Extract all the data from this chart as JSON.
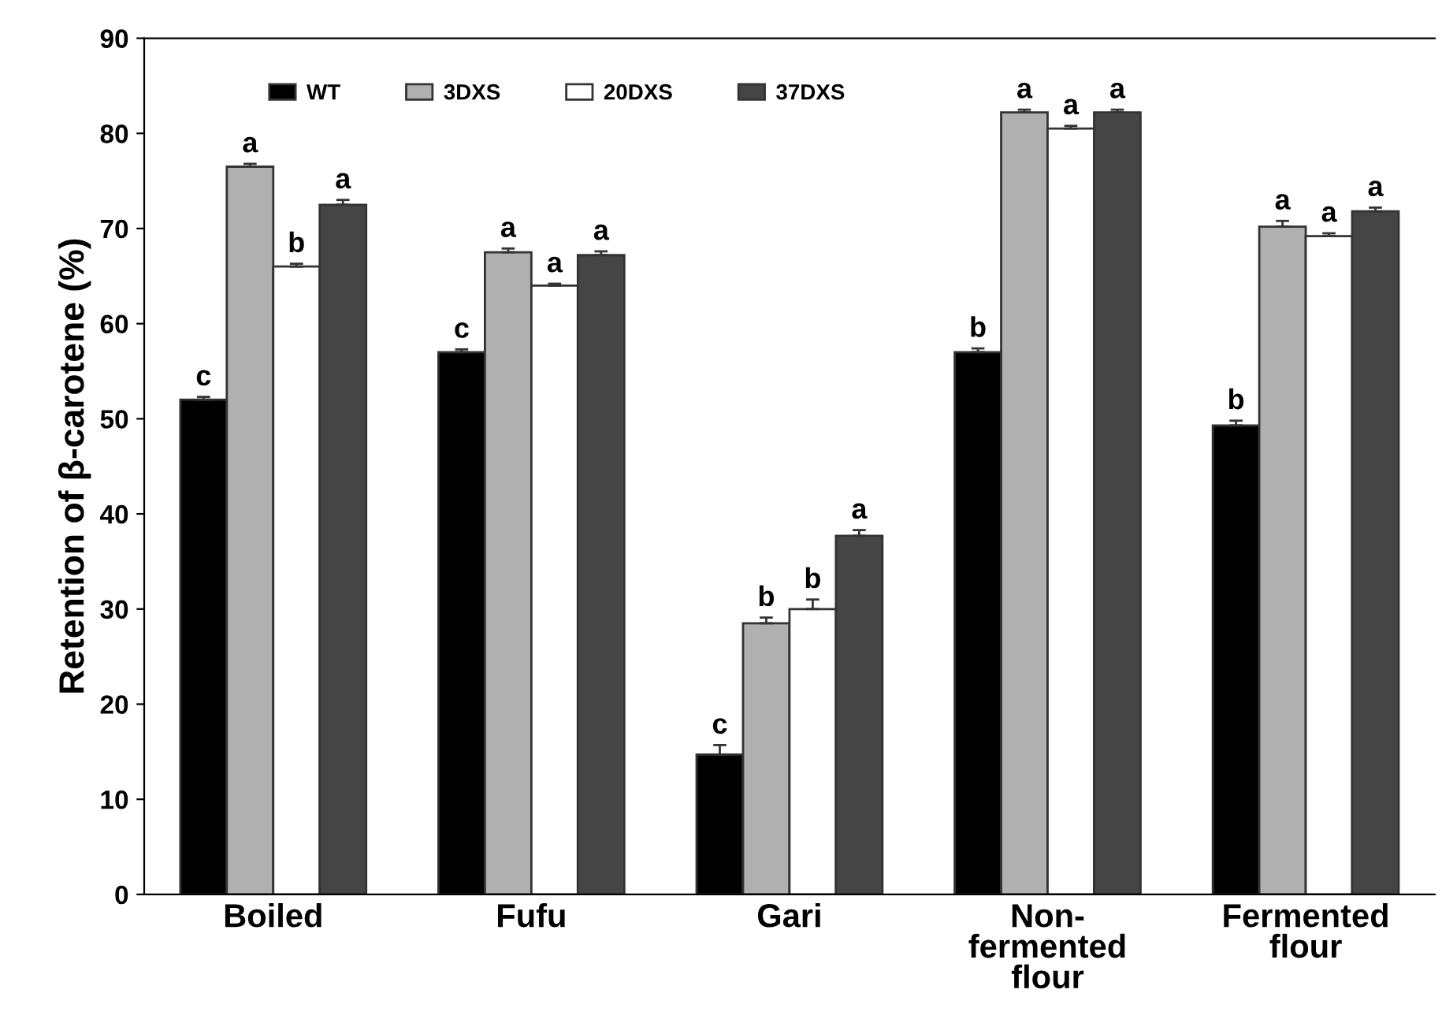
{
  "chart_data": {
    "type": "bar",
    "ylabel": "Retention of β-carotene (%)",
    "categories": [
      "Boiled",
      "Fufu",
      "Gari",
      "Non-\nfermented\nflour",
      "Fermented\nflour"
    ],
    "series": [
      {
        "name": "WT",
        "color": "#000000",
        "values": [
          52,
          57,
          14.7,
          57,
          49.3
        ],
        "errors": [
          0.3,
          0.3,
          1.0,
          0.4,
          0.5
        ],
        "value_labels": [
          "c",
          "c",
          "c",
          "b",
          "b"
        ]
      },
      {
        "name": "3DXS",
        "color": "#b0b0b0",
        "values": [
          76.5,
          67.5,
          28.5,
          82.2,
          70.2
        ],
        "errors": [
          0.3,
          0.4,
          0.6,
          0.3,
          0.6
        ],
        "value_labels": [
          "a",
          "a",
          "b",
          "a",
          "a"
        ]
      },
      {
        "name": "20DXS",
        "color": "#ffffff",
        "values": [
          66,
          64,
          30,
          80.5,
          69.2
        ],
        "errors": [
          0.3,
          0.2,
          1.0,
          0.3,
          0.3
        ],
        "value_labels": [
          "b",
          "a",
          "b",
          "a",
          "a"
        ]
      },
      {
        "name": "37DXS",
        "color": "#454545",
        "values": [
          72.5,
          67.2,
          37.7,
          82.2,
          71.8
        ],
        "errors": [
          0.5,
          0.4,
          0.6,
          0.3,
          0.4
        ],
        "value_labels": [
          "a",
          "a",
          "a",
          "a",
          "a"
        ]
      }
    ],
    "ylim": [
      0,
      90
    ],
    "yticks": [
      0,
      10,
      20,
      30,
      40,
      50,
      60,
      70,
      80,
      90
    ],
    "grid": false,
    "legend": "top"
  }
}
